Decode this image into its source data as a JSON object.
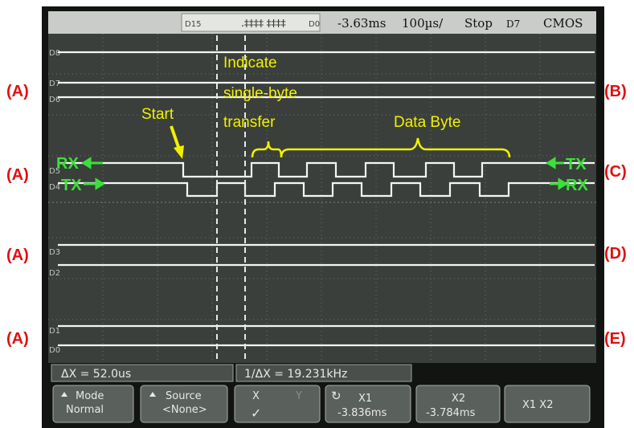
{
  "status_bar": {
    "range_start": "D15",
    "range_end": "D0",
    "time_offset": "-3.63ms",
    "time_scale": "100µs/",
    "run_state": "Stop",
    "trigger_source": "D7",
    "threshold": "CMOS"
  },
  "channel_labels": [
    "D8",
    "D7",
    "D6",
    "D5",
    "D4",
    "D3",
    "D2",
    "D1",
    "D0"
  ],
  "left_annotations": [
    "(A)",
    "(A)",
    "(A)",
    "(A)"
  ],
  "right_annotations": [
    "(B)",
    "(C)",
    "(D)",
    "(E)"
  ],
  "signal_labels": {
    "left": [
      "RX",
      "TX"
    ],
    "right": [
      "TX",
      "RX"
    ]
  },
  "callouts": {
    "start": "Start",
    "indicate": [
      "Indicate",
      "single-byte",
      "transfer"
    ],
    "data_byte": "Data Byte"
  },
  "measurements": {
    "delta_x": "ΔX = 52.0us",
    "inverse_delta_x": "1/ΔX = 19.231kHz"
  },
  "softkeys": [
    {
      "label": "Mode",
      "value": "Normal"
    },
    {
      "label": "Source",
      "value": "<None>"
    },
    {
      "label": "X",
      "secondary": "Y",
      "value": "✓"
    },
    {
      "label": "X1",
      "value": "-3.836ms"
    },
    {
      "label": "X2",
      "value": "-3.784ms"
    },
    {
      "label": "X1 X2"
    }
  ]
}
